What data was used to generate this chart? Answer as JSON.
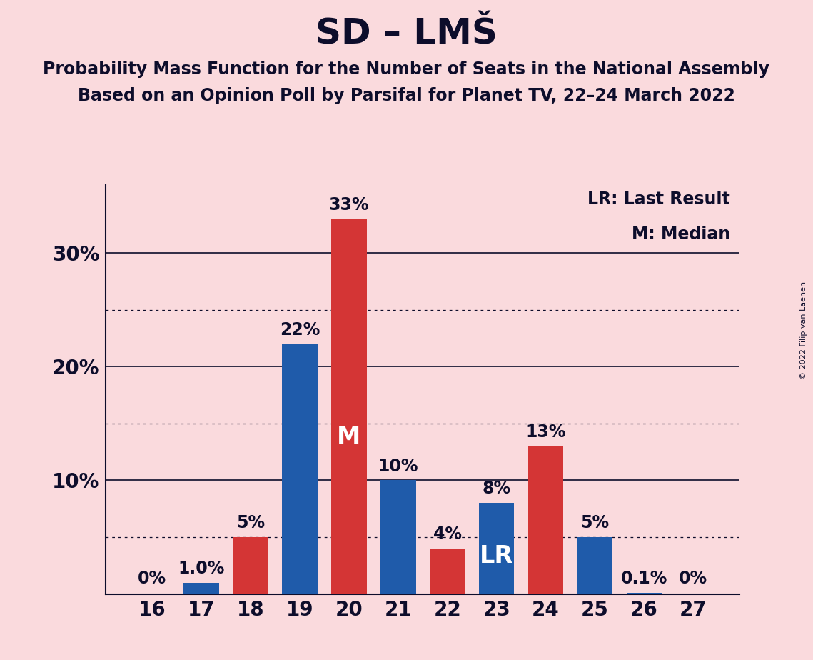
{
  "title": "SD – LMŠ",
  "subtitle1": "Probability Mass Function for the Number of Seats in the National Assembly",
  "subtitle2": "Based on an Opinion Poll by Parsifal for Planet TV, 22–24 March 2022",
  "copyright": "© 2022 Filip van Laenen",
  "legend_lr": "LR: Last Result",
  "legend_m": "M: Median",
  "seats": [
    16,
    17,
    18,
    19,
    20,
    21,
    22,
    23,
    24,
    25,
    26,
    27
  ],
  "values": [
    0.0,
    1.0,
    5.0,
    22.0,
    33.0,
    10.0,
    4.0,
    8.0,
    13.0,
    5.0,
    0.1,
    0.0
  ],
  "labels": [
    "0%",
    "1.0%",
    "5%",
    "22%",
    "33%",
    "10%",
    "4%",
    "8%",
    "13%",
    "5%",
    "0.1%",
    "0%"
  ],
  "bar_colors": [
    "#1f5baa",
    "#1f5baa",
    "#d43535",
    "#1f5baa",
    "#d43535",
    "#1f5baa",
    "#d43535",
    "#1f5baa",
    "#d43535",
    "#1f5baa",
    "#1f5baa",
    "#1f5baa"
  ],
  "median_seat": 20,
  "lr_seat": 23,
  "background_color": "#fadadd",
  "ylim": [
    0,
    36
  ],
  "yticks": [
    10,
    20,
    30
  ],
  "ytick_labels": [
    "10%",
    "20%",
    "30%"
  ],
  "dotted_yticks": [
    5,
    15,
    25
  ],
  "solid_yticks": [
    10,
    20,
    30
  ],
  "title_fontsize": 36,
  "subtitle_fontsize": 17,
  "label_fontsize": 17,
  "tick_fontsize": 20,
  "annotation_fontsize": 24
}
